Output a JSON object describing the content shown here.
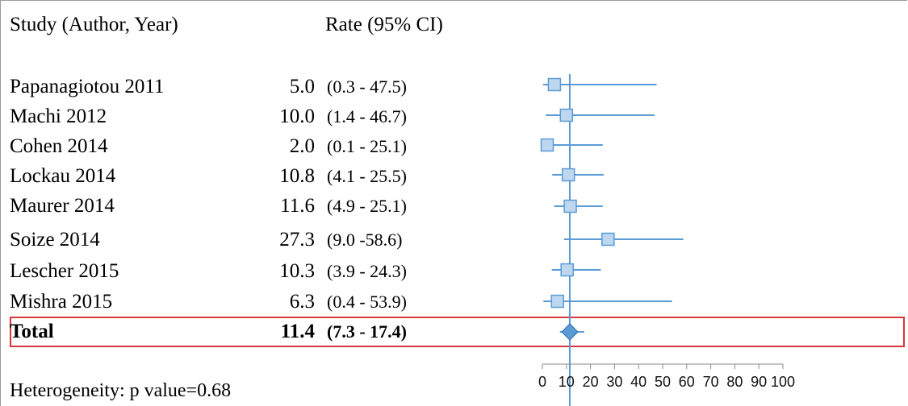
{
  "header": {
    "study_label": "Study (Author, Year)",
    "rate_label": "Rate (95% CI)"
  },
  "studies": [
    {
      "name": "Papanagiotou 2011",
      "rate": "5.0",
      "ci": "(0.3 - 47.5)"
    },
    {
      "name": "Machi 2012",
      "rate": "10.0",
      "ci": "(1.4 - 46.7)"
    },
    {
      "name": "Cohen 2014",
      "rate": "2.0",
      "ci": "(0.1 - 25.1)"
    },
    {
      "name": "Lockau 2014",
      "rate": "10.8",
      "ci": "(4.1 - 25.5)"
    },
    {
      "name": "Maurer 2014",
      "rate": "11.6",
      "ci": "(4.9 - 25.1)"
    },
    {
      "name": "Soize 2014",
      "rate": "27.3",
      "ci": "(9.0 -58.6)"
    },
    {
      "name": "Lescher 2015",
      "rate": "10.3",
      "ci": "(3.9 - 24.3)"
    },
    {
      "name": "Mishra 2015",
      "rate": "6.3",
      "ci": "(0.4 - 53.9)"
    }
  ],
  "total": {
    "name": "Total",
    "rate": "11.4",
    "ci": "(7.3 - 17.4)"
  },
  "heterogeneity": "Heterogeneity: p value=0.68",
  "colors": {
    "ci_line": "#5b9bd5",
    "marker_fill": "#bdd7ee",
    "marker_stroke": "#5b9bd5",
    "diamond_fill": "#5b9bd5",
    "total_box": "#d8363c"
  },
  "chart_data": {
    "type": "forest",
    "x_ticks": [
      "0",
      "10",
      "20",
      "30",
      "40",
      "50",
      "60",
      "70",
      "80",
      "90",
      "100"
    ],
    "xlim": [
      0,
      100
    ],
    "reference_line": 11.4,
    "points": [
      {
        "study": "Papanagiotou 2011",
        "rate": 5.0,
        "lo": 0.3,
        "hi": 47.5
      },
      {
        "study": "Machi 2012",
        "rate": 10.0,
        "lo": 1.4,
        "hi": 46.7
      },
      {
        "study": "Cohen 2014",
        "rate": 2.0,
        "lo": 0.1,
        "hi": 25.1
      },
      {
        "study": "Lockau 2014",
        "rate": 10.8,
        "lo": 4.1,
        "hi": 25.5
      },
      {
        "study": "Maurer 2014",
        "rate": 11.6,
        "lo": 4.9,
        "hi": 25.1
      },
      {
        "study": "Soize 2014",
        "rate": 27.3,
        "lo": 9.0,
        "hi": 58.6
      },
      {
        "study": "Lescher 2015",
        "rate": 10.3,
        "lo": 3.9,
        "hi": 24.3
      },
      {
        "study": "Mishra 2015",
        "rate": 6.3,
        "lo": 0.4,
        "hi": 53.9
      }
    ],
    "pooled": {
      "rate": 11.4,
      "lo": 7.3,
      "hi": 17.4
    }
  }
}
